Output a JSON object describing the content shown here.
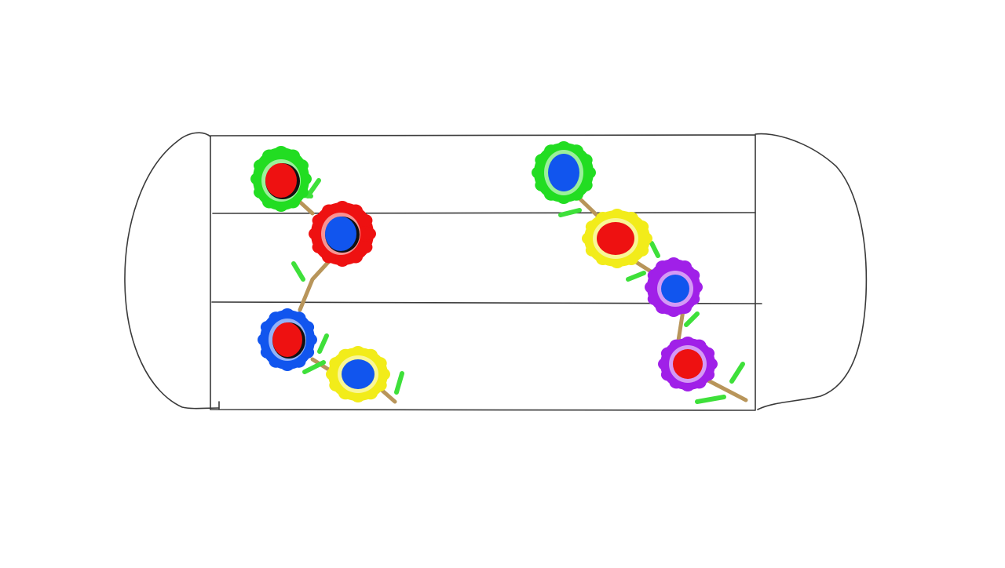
{
  "drawing": {
    "subject": "face-mask-with-flowers",
    "outline_color": "#3a3a3a",
    "stem_color": "#b8955a",
    "leaf_color": "#3ee03a",
    "flowers_left": [
      {
        "petal_color": "#22dd22",
        "center_color": "#ee1111"
      },
      {
        "petal_color": "#ee1111",
        "center_color": "#1155ee"
      },
      {
        "petal_color": "#1155ee",
        "center_color": "#ee1111"
      },
      {
        "petal_color": "#f2ec1a",
        "center_color": "#1155ee"
      }
    ],
    "flowers_right": [
      {
        "petal_color": "#22dd22",
        "center_color": "#1155ee"
      },
      {
        "petal_color": "#f2ec1a",
        "center_color": "#ee1111"
      },
      {
        "petal_color": "#a020e8",
        "center_color": "#1155ee"
      },
      {
        "petal_color": "#a020e8",
        "center_color": "#ee1111"
      }
    ]
  }
}
